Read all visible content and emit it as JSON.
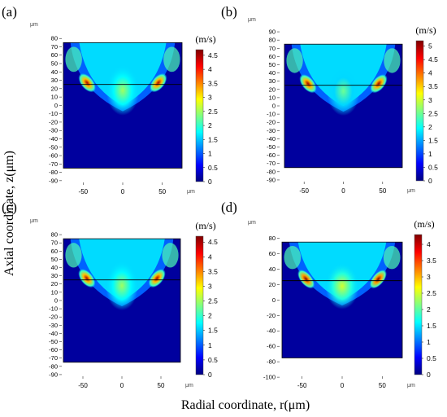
{
  "figure": {
    "xlabel": "Radial coordinate, r(μm)",
    "ylabel": "Axial coordinate, z(μm)"
  },
  "colors": {
    "colormap": [
      "#00007f",
      "#0000ff",
      "#0080ff",
      "#00ffff",
      "#80ff80",
      "#ffff00",
      "#ff8000",
      "#ff0000",
      "#7f0000"
    ],
    "background": "#ffffff",
    "axis": "#000000"
  },
  "chart_data": [
    {
      "type": "heatmap",
      "panel_label": "(a)",
      "unit_top": "μm",
      "unit_right": "μm",
      "colorbar_title": "(m/s)",
      "x_ticks": [
        "-50",
        "0",
        "50"
      ],
      "x_tick_values": [
        -50,
        0,
        50
      ],
      "y_ticks": [
        "80",
        "70",
        "60",
        "50",
        "40",
        "30",
        "20",
        "10",
        "0",
        "-10",
        "-20",
        "-30",
        "-40",
        "-50",
        "-60",
        "-70",
        "-80",
        "-90"
      ],
      "y_tick_values": [
        80,
        70,
        60,
        50,
        40,
        30,
        20,
        10,
        0,
        -10,
        -20,
        -30,
        -40,
        -50,
        -60,
        -70,
        -80,
        -90
      ],
      "xlim": [
        -75,
        75
      ],
      "ylim": [
        -95,
        87
      ],
      "domain_x": [
        -75,
        75
      ],
      "domain_y": [
        -75,
        75
      ],
      "interface_z": 25,
      "colorbar_ticks": [
        "4.5",
        "4",
        "3.5",
        "3",
        "2.5",
        "2",
        "1.5",
        "1",
        "0.5",
        "0"
      ],
      "colorbar_tick_values": [
        4.5,
        4,
        3.5,
        3,
        2.5,
        2,
        1.5,
        1,
        0.5,
        0
      ],
      "colorbar_range": [
        0,
        4.7
      ],
      "hotspots": [
        {
          "r": -45,
          "z": 27,
          "value": 4.5
        },
        {
          "r": 45,
          "z": 27,
          "value": 4.5
        }
      ],
      "core_value": 2.5
    },
    {
      "type": "heatmap",
      "panel_label": "(b)",
      "unit_top": "μm",
      "unit_right": "μm",
      "colorbar_title": "(m/s)",
      "x_ticks": [
        "-50",
        "0",
        "50"
      ],
      "x_tick_values": [
        -50,
        0,
        50
      ],
      "y_ticks": [
        "90",
        "80",
        "70",
        "60",
        "50",
        "40",
        "30",
        "20",
        "10",
        "0",
        "-10",
        "-20",
        "-30",
        "-40",
        "-50",
        "-60",
        "-70",
        "-80",
        "-90"
      ],
      "y_tick_values": [
        90,
        80,
        70,
        60,
        50,
        40,
        30,
        20,
        10,
        0,
        -10,
        -20,
        -30,
        -40,
        -50,
        -60,
        -70,
        -80,
        -90
      ],
      "xlim": [
        -75,
        75
      ],
      "ylim": [
        -95,
        95
      ],
      "domain_x": [
        -75,
        75
      ],
      "domain_y": [
        -75,
        75
      ],
      "interface_z": 25,
      "colorbar_ticks": [
        "5",
        "4.5",
        "4",
        "3.5",
        "3",
        "2.5",
        "2",
        "1.5",
        "1",
        "0.5",
        "0"
      ],
      "colorbar_tick_values": [
        5,
        4.5,
        4,
        3.5,
        3,
        2.5,
        2,
        1.5,
        1,
        0.5,
        0
      ],
      "colorbar_range": [
        0,
        5.2
      ],
      "hotspots": [
        {
          "r": -45,
          "z": 27,
          "value": 5
        },
        {
          "r": 45,
          "z": 27,
          "value": 5
        }
      ],
      "core_value": 2.5
    },
    {
      "type": "heatmap",
      "panel_label": "(c)",
      "unit_top": "μm",
      "unit_right": "μm",
      "colorbar_title": "(m/s)",
      "x_ticks": [
        "-50",
        "0",
        "50"
      ],
      "x_tick_values": [
        -50,
        0,
        50
      ],
      "y_ticks": [
        "80",
        "70",
        "60",
        "50",
        "40",
        "30",
        "20",
        "10",
        "0",
        "-10",
        "-20",
        "-30",
        "-40",
        "-50",
        "-60",
        "-70",
        "-80",
        "-90"
      ],
      "y_tick_values": [
        80,
        70,
        60,
        50,
        40,
        30,
        20,
        10,
        0,
        -10,
        -20,
        -30,
        -40,
        -50,
        -60,
        -70,
        -80,
        -90
      ],
      "xlim": [
        -75,
        75
      ],
      "ylim": [
        -95,
        87
      ],
      "domain_x": [
        -75,
        75
      ],
      "domain_y": [
        -75,
        75
      ],
      "interface_z": 25,
      "colorbar_ticks": [
        "4.5",
        "4",
        "3.5",
        "3",
        "2.5",
        "2",
        "1.5",
        "1",
        "0.5",
        "0"
      ],
      "colorbar_tick_values": [
        4.5,
        4,
        3.5,
        3,
        2.5,
        2,
        1.5,
        1,
        0.5,
        0
      ],
      "colorbar_range": [
        0,
        4.7
      ],
      "hotspots": [
        {
          "r": -45,
          "z": 27,
          "value": 4.5
        },
        {
          "r": 45,
          "z": 27,
          "value": 4.5
        }
      ],
      "core_value": 2.5
    },
    {
      "type": "heatmap",
      "panel_label": "(d)",
      "unit_top": "μm",
      "unit_right": "μm",
      "colorbar_title": "(m/s)",
      "x_ticks": [
        "-50",
        "0",
        "50"
      ],
      "x_tick_values": [
        -50,
        0,
        50
      ],
      "y_ticks": [
        "80",
        "60",
        "40",
        "20",
        "0",
        "-20",
        "-40",
        "-60",
        "-80",
        "-100"
      ],
      "y_tick_values": [
        80,
        60,
        40,
        20,
        0,
        -20,
        -40,
        -60,
        -80,
        -100
      ],
      "xlim": [
        -75,
        75
      ],
      "ylim": [
        -102,
        90
      ],
      "domain_x": [
        -75,
        75
      ],
      "domain_y": [
        -75,
        75
      ],
      "interface_z": 25,
      "colorbar_ticks": [
        "4",
        "3.5",
        "3",
        "2.5",
        "2",
        "1.5",
        "1",
        "0.5",
        "0"
      ],
      "colorbar_tick_values": [
        4,
        3.5,
        3,
        2.5,
        2,
        1.5,
        1,
        0.5,
        0
      ],
      "colorbar_range": [
        0,
        4.3
      ],
      "hotspots": [
        {
          "r": -45,
          "z": 27,
          "value": 4.3
        },
        {
          "r": 45,
          "z": 27,
          "value": 4.3
        }
      ],
      "core_value": 2.5
    }
  ]
}
